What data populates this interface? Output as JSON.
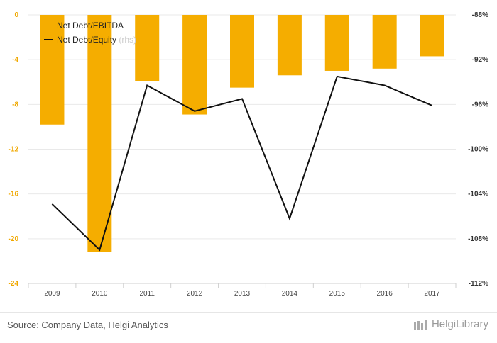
{
  "chart_data": {
    "type": "bar",
    "categories": [
      "2009",
      "2010",
      "2011",
      "2012",
      "2013",
      "2014",
      "2015",
      "2016",
      "2017"
    ],
    "series": [
      {
        "name": "Net Debt/EBITDA",
        "type": "bar",
        "axis": "left",
        "color": "#f5ad00",
        "values": [
          -9.8,
          -21.2,
          -5.9,
          -8.9,
          -6.5,
          -5.4,
          -5.0,
          -4.8,
          -3.7
        ]
      },
      {
        "name": "Net Debt/Equity",
        "type": "line",
        "axis": "right",
        "color": "#111111",
        "values": [
          -104.9,
          -109.0,
          -94.3,
          -96.6,
          -95.5,
          -106.2,
          -93.5,
          -94.3,
          -96.1
        ]
      }
    ],
    "y_left": {
      "ylim": [
        -24,
        0
      ],
      "ticks": [
        0,
        -4,
        -8,
        -12,
        -16,
        -20,
        -24
      ],
      "tick_labels": [
        "0",
        "-4",
        "-8",
        "-12",
        "-16",
        "-20",
        "-24"
      ]
    },
    "y_right": {
      "ylim": [
        -112,
        -88
      ],
      "ticks": [
        -88,
        -92,
        -96,
        -100,
        -104,
        -108,
        -112
      ],
      "tick_labels": [
        "-88%",
        "-92%",
        "-96%",
        "-100%",
        "-104%",
        "-108%",
        "-112%"
      ]
    },
    "legend": {
      "position": "top-left",
      "items": [
        {
          "label": "Net Debt/EBITDA",
          "marker": "none"
        },
        {
          "label": "Net Debt/Equity",
          "suffix": "(rhs)",
          "marker": "line"
        }
      ]
    },
    "grid": true
  },
  "footer": {
    "source": "Source: Company Data, Helgi Analytics",
    "brand": "HelgiLibrary"
  }
}
